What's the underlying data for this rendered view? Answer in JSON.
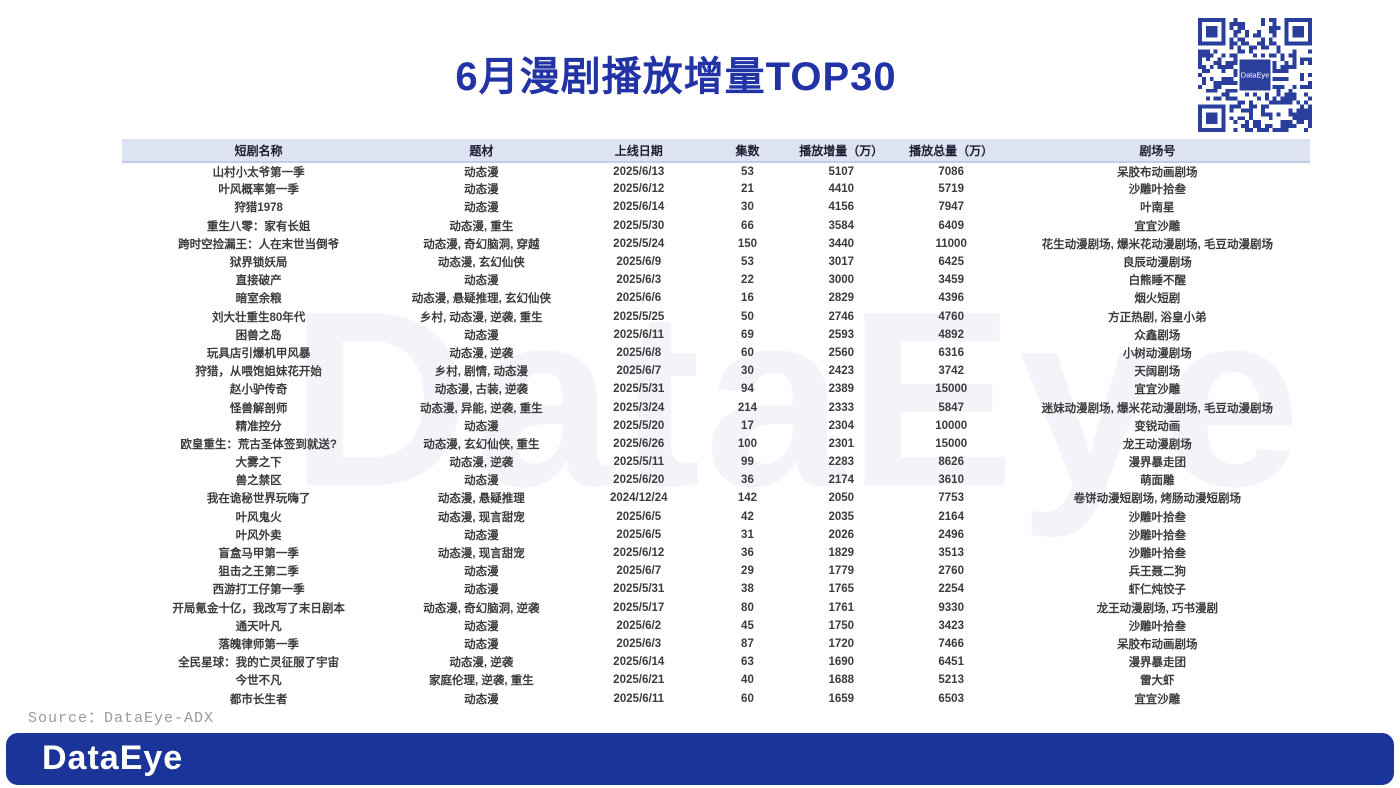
{
  "page": {
    "title": "6月漫剧播放增量TOP30",
    "source": "Source：DataEye-ADX",
    "brand": "DataEye",
    "qr_center_label": "DataEye"
  },
  "colors": {
    "title_blue": "#2233a6",
    "header_bg": "#dde3f2",
    "brand_bar_blue": "#1b3499",
    "qr_blue": "#2a3f9b",
    "body_text": "#3c3c3c",
    "source_gray": "#9a9a9a"
  },
  "chart_data": {
    "type": "table",
    "title": "6月漫剧播放增量TOP30",
    "columns": [
      "短剧名称",
      "题材",
      "上线日期",
      "集数",
      "播放增量（万）",
      "播放总量（万）",
      "剧场号"
    ],
    "rows": [
      [
        "山村小太爷第一季",
        "动态漫",
        "2025/6/13",
        "53",
        "5107",
        "7086",
        "呆胶布动画剧场"
      ],
      [
        "叶风概率第一季",
        "动态漫",
        "2025/6/12",
        "21",
        "4410",
        "5719",
        "沙雕叶拾叁"
      ],
      [
        "狩猎1978",
        "动态漫",
        "2025/6/14",
        "30",
        "4156",
        "7947",
        "叶南星"
      ],
      [
        "重生八零：家有长姐",
        "动态漫, 重生",
        "2025/5/30",
        "66",
        "3584",
        "6409",
        "宜宜沙雕"
      ],
      [
        "跨时空捡漏王：人在末世当倒爷",
        "动态漫, 奇幻脑洞, 穿越",
        "2025/5/24",
        "150",
        "3440",
        "11000",
        "花生动漫剧场, 爆米花动漫剧场, 毛豆动漫剧场"
      ],
      [
        "狱界锁妖局",
        "动态漫, 玄幻仙侠",
        "2025/6/9",
        "53",
        "3017",
        "6425",
        "良辰动漫剧场"
      ],
      [
        "直接破产",
        "动态漫",
        "2025/6/3",
        "22",
        "3000",
        "3459",
        "白熊睡不醒"
      ],
      [
        "暗室余粮",
        "动态漫, 悬疑推理, 玄幻仙侠",
        "2025/6/6",
        "16",
        "2829",
        "4396",
        "烟火短剧"
      ],
      [
        "刘大壮重生80年代",
        "乡村, 动态漫, 逆袭, 重生",
        "2025/5/25",
        "50",
        "2746",
        "4760",
        "方正热剧, 浴皇小弟"
      ],
      [
        "困兽之岛",
        "动态漫",
        "2025/6/11",
        "69",
        "2593",
        "4892",
        "众鑫剧场"
      ],
      [
        "玩具店引爆机甲风暴",
        "动态漫, 逆袭",
        "2025/6/8",
        "60",
        "2560",
        "6316",
        "小树动漫剧场"
      ],
      [
        "狩猎，从喂饱姐妹花开始",
        "乡村, 剧情, 动态漫",
        "2025/6/7",
        "30",
        "2423",
        "3742",
        "天阔剧场"
      ],
      [
        "赵小驴传奇",
        "动态漫, 古装, 逆袭",
        "2025/5/31",
        "94",
        "2389",
        "15000",
        "宜宜沙雕"
      ],
      [
        "怪兽解剖师",
        "动态漫, 异能, 逆袭, 重生",
        "2025/3/24",
        "214",
        "2333",
        "5847",
        "迷妹动漫剧场, 爆米花动漫剧场, 毛豆动漫剧场"
      ],
      [
        "精准控分",
        "动态漫",
        "2025/5/20",
        "17",
        "2304",
        "10000",
        "变锐动画"
      ],
      [
        "欧皇重生：荒古圣体签到就送?",
        "动态漫, 玄幻仙侠, 重生",
        "2025/6/26",
        "100",
        "2301",
        "15000",
        "龙王动漫剧场"
      ],
      [
        "大雾之下",
        "动态漫, 逆袭",
        "2025/5/11",
        "99",
        "2283",
        "8626",
        "漫界暴走团"
      ],
      [
        "兽之禁区",
        "动态漫",
        "2025/6/20",
        "36",
        "2174",
        "3610",
        "萌面雕"
      ],
      [
        "我在诡秘世界玩嗨了",
        "动态漫, 悬疑推理",
        "2024/12/24",
        "142",
        "2050",
        "7753",
        "卷饼动漫短剧场, 烤肠动漫短剧场"
      ],
      [
        "叶风鬼火",
        "动态漫, 现言甜宠",
        "2025/6/5",
        "42",
        "2035",
        "2164",
        "沙雕叶拾叁"
      ],
      [
        "叶风外卖",
        "动态漫",
        "2025/6/5",
        "31",
        "2026",
        "2496",
        "沙雕叶拾叁"
      ],
      [
        "盲盒马甲第一季",
        "动态漫, 现言甜宠",
        "2025/6/12",
        "36",
        "1829",
        "3513",
        "沙雕叶拾叁"
      ],
      [
        "狙击之王第二季",
        "动态漫",
        "2025/6/7",
        "29",
        "1779",
        "2760",
        "兵王聂二狗"
      ],
      [
        "西游打工仔第一季",
        "动态漫",
        "2025/5/31",
        "38",
        "1765",
        "2254",
        "虾仁炖饺子"
      ],
      [
        "开局氪金十亿，我改写了末日剧本",
        "动态漫, 奇幻脑洞, 逆袭",
        "2025/5/17",
        "80",
        "1761",
        "9330",
        "龙王动漫剧场, 巧书漫剧"
      ],
      [
        "通天叶凡",
        "动态漫",
        "2025/6/2",
        "45",
        "1750",
        "3423",
        "沙雕叶拾叁"
      ],
      [
        "落魄律师第一季",
        "动态漫",
        "2025/6/3",
        "87",
        "1720",
        "7466",
        "呆胶布动画剧场"
      ],
      [
        "全民星球：我的亡灵征服了宇宙",
        "动态漫, 逆袭",
        "2025/6/14",
        "63",
        "1690",
        "6451",
        "漫界暴走团"
      ],
      [
        "今世不凡",
        "家庭伦理, 逆袭, 重生",
        "2025/6/21",
        "40",
        "1688",
        "5213",
        "雷大虾"
      ],
      [
        "都市长生者",
        "动态漫",
        "2025/6/11",
        "60",
        "1659",
        "6503",
        "宜宜沙雕"
      ]
    ]
  }
}
